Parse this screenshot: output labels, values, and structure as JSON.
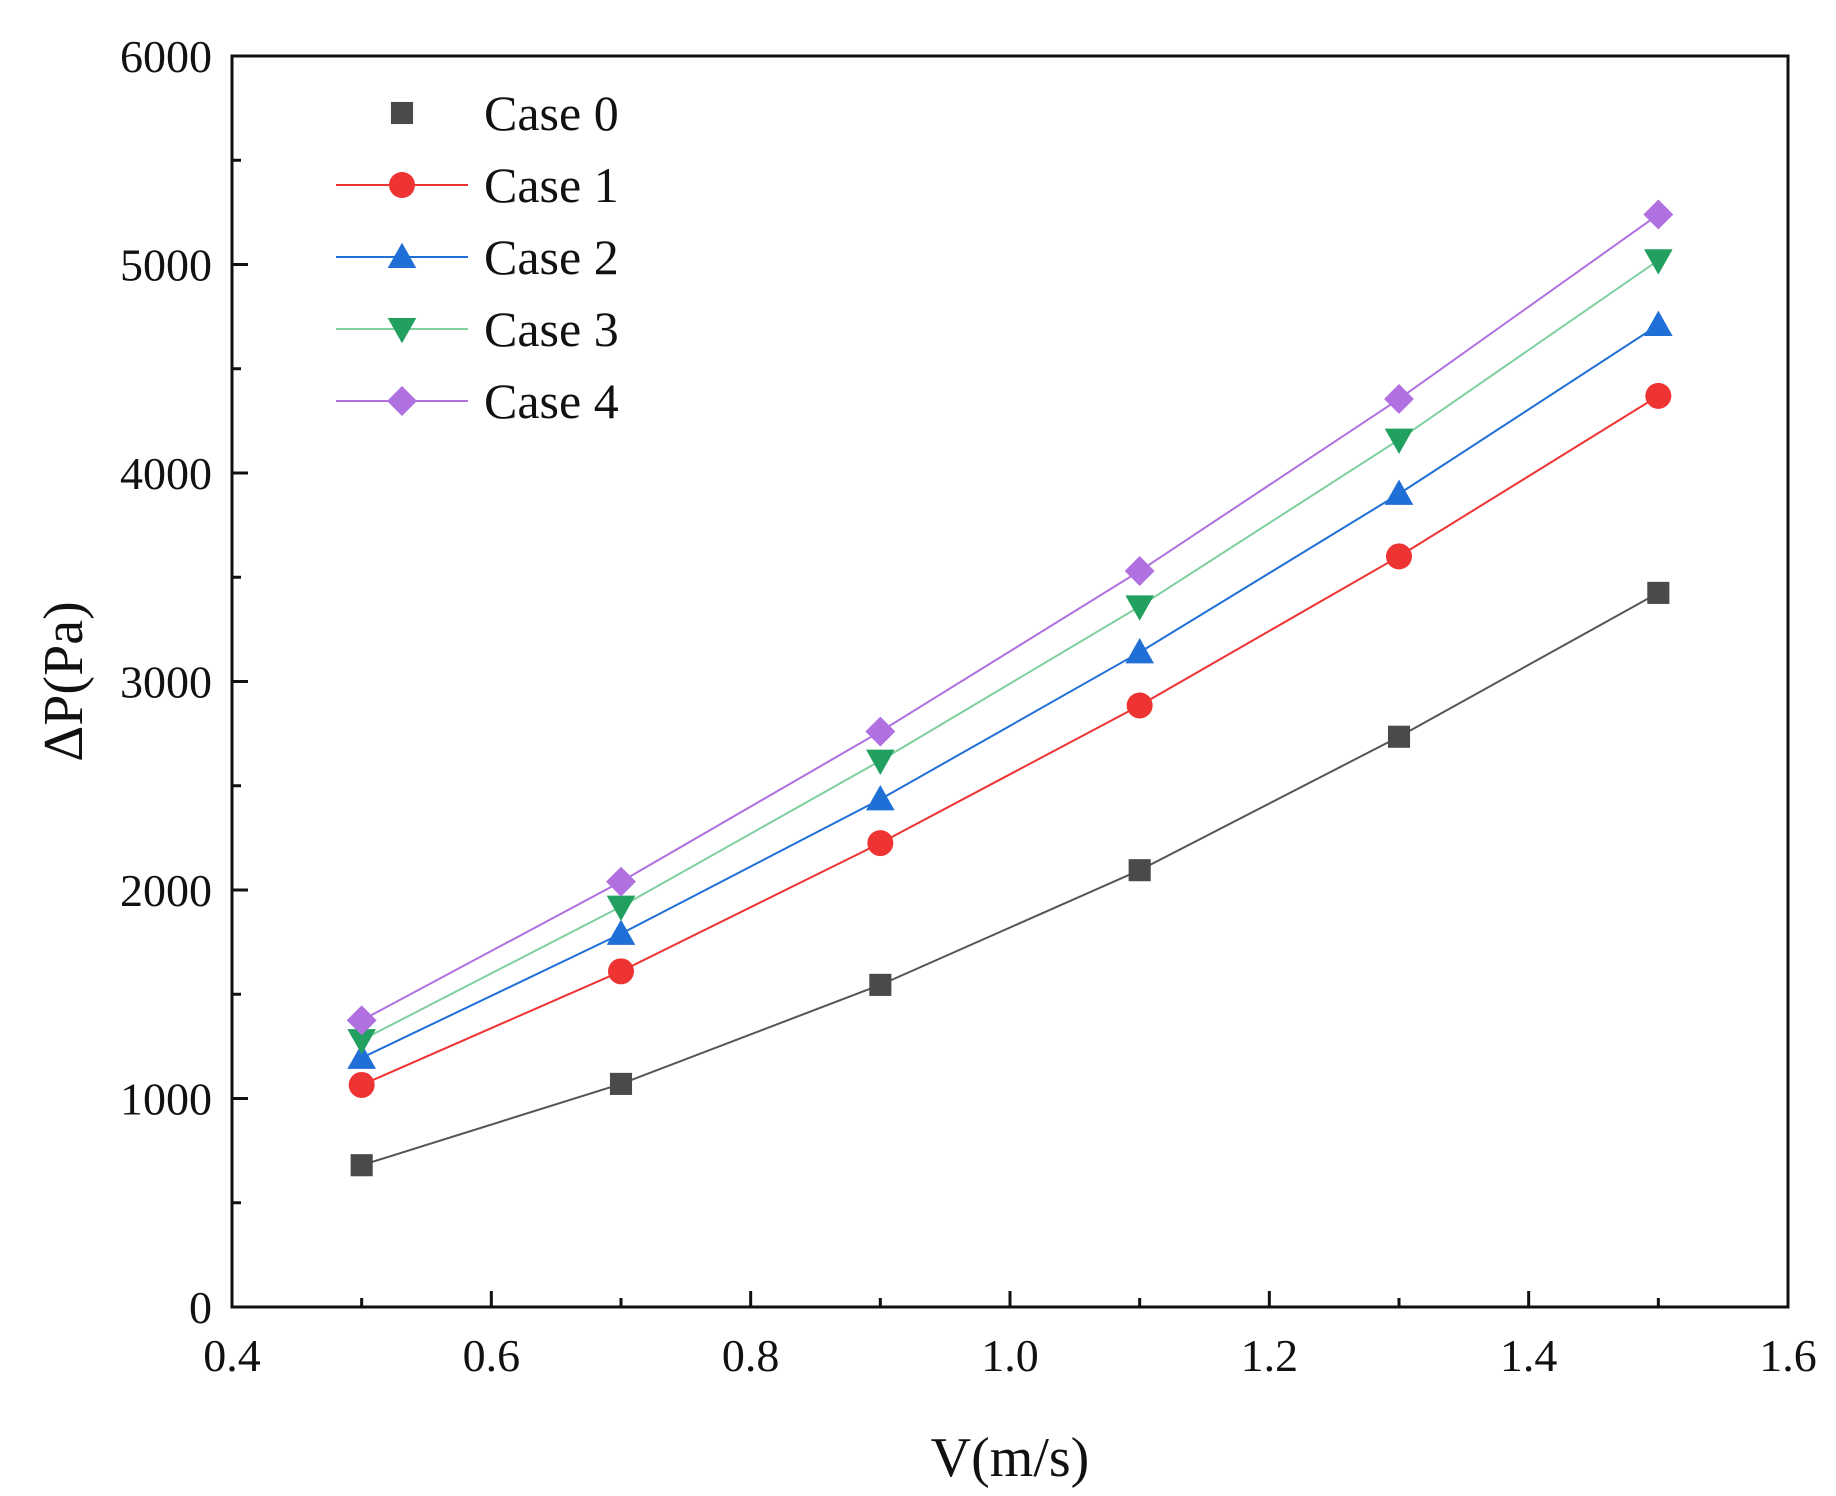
{
  "chart_data": {
    "type": "line",
    "title": "",
    "xlabel": "V(m/s)",
    "ylabel": "ΔP(Pa)",
    "xlim": [
      0.4,
      1.6
    ],
    "ylim": [
      0,
      6000
    ],
    "x_ticks": [
      0.4,
      0.6,
      0.8,
      1.0,
      1.2,
      1.4,
      1.6
    ],
    "x_tick_labels": [
      "0.4",
      "0.6",
      "0.8",
      "1.0",
      "1.2",
      "1.4",
      "1.6"
    ],
    "y_ticks": [
      0,
      1000,
      2000,
      3000,
      4000,
      5000,
      6000
    ],
    "y_tick_labels": [
      "0",
      "1000",
      "2000",
      "3000",
      "4000",
      "5000",
      "6000"
    ],
    "grid": false,
    "legend_position": "top-left",
    "x": [
      0.5,
      0.7,
      0.9,
      1.1,
      1.3,
      1.5
    ],
    "series": [
      {
        "name": "Case 0",
        "color": "#4a4a4a",
        "marker": "square",
        "line_color": "#555555",
        "show_line_in_legend": false,
        "values": [
          680,
          1070,
          1545,
          2095,
          2735,
          3425
        ]
      },
      {
        "name": "Case 1",
        "color": "#ee3333",
        "marker": "circle",
        "line_color": "#ee3333",
        "show_line_in_legend": true,
        "values": [
          1065,
          1610,
          2225,
          2885,
          3600,
          4370
        ]
      },
      {
        "name": "Case 2",
        "color": "#1f6fd6",
        "marker": "triangle-up",
        "line_color": "#1f6fd6",
        "show_line_in_legend": true,
        "values": [
          1195,
          1790,
          2435,
          3140,
          3900,
          4710
        ]
      },
      {
        "name": "Case 3",
        "color": "#22a060",
        "marker": "triangle-down",
        "line_color": "#7fcf9f",
        "show_line_in_legend": true,
        "values": [
          1280,
          1920,
          2620,
          3360,
          4160,
          5020
        ]
      },
      {
        "name": "Case 4",
        "color": "#b070e0",
        "marker": "diamond",
        "line_color": "#b070e0",
        "show_line_in_legend": true,
        "values": [
          1375,
          2040,
          2760,
          3530,
          4355,
          5240
        ]
      }
    ]
  }
}
